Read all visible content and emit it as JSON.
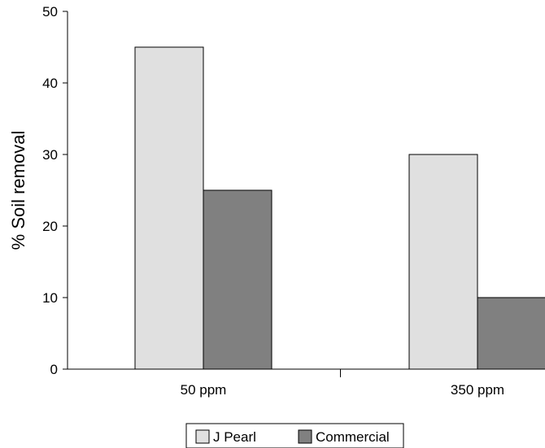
{
  "chart_data": {
    "type": "bar",
    "title": "",
    "xlabel": "",
    "ylabel": "% Soil removal",
    "categories": [
      "50 ppm",
      "350 ppm"
    ],
    "series": [
      {
        "name": "J Pearl",
        "values": [
          45,
          30
        ],
        "color": "#e0e0e0"
      },
      {
        "name": "Commercial",
        "values": [
          25,
          10
        ],
        "color": "#808080"
      }
    ],
    "ylim": [
      0,
      50
    ],
    "yticks": [
      0,
      10,
      20,
      30,
      40,
      50
    ],
    "grid": false,
    "legend_position": "bottom-center"
  }
}
